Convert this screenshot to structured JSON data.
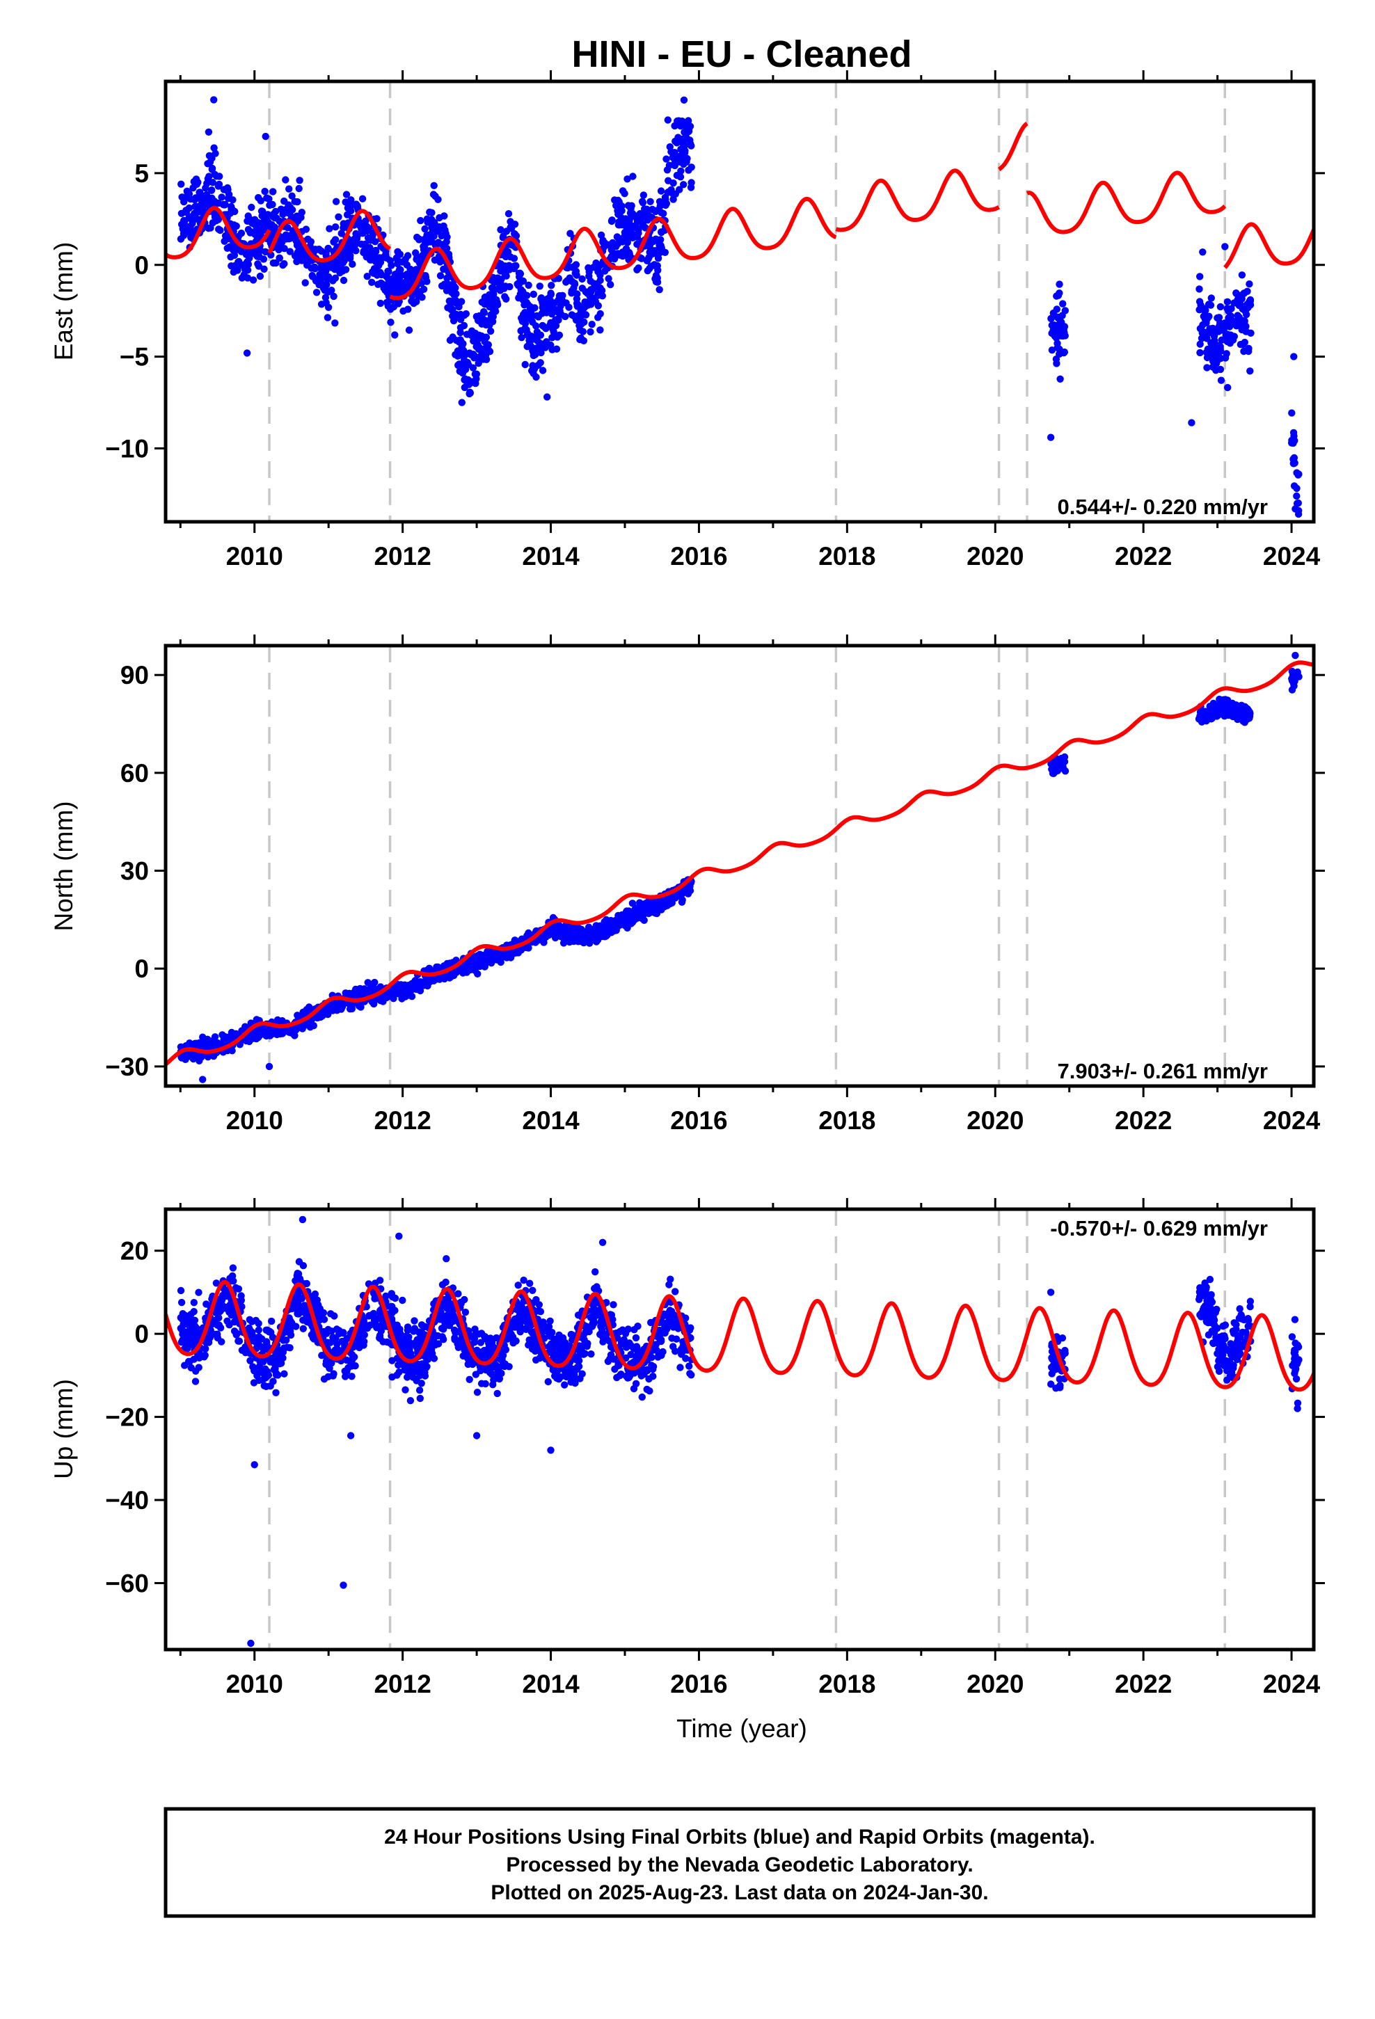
{
  "title": "HINI  - EU - Cleaned",
  "footer": {
    "line1": "24 Hour Positions Using Final Orbits (blue) and Rapid Orbits (magenta).",
    "line2": "Processed by the Nevada Geodetic Laboratory.",
    "line3": "Plotted on 2025-Aug-23. Last data on 2024-Jan-30."
  },
  "colors": {
    "data": "#0000ff",
    "model": "#ff0000",
    "steps": "#c8c8c8",
    "frame": "#000000"
  },
  "chart_data": [
    {
      "type": "scatter",
      "panel": "east",
      "ylabel": "East (mm)",
      "xlabel": "",
      "rate_label": "0.544+/- 0.220 mm/yr",
      "xlim": [
        2008.8,
        2024.3
      ],
      "ylim": [
        -14,
        10
      ],
      "xticks": [
        2010,
        2012,
        2014,
        2016,
        2018,
        2020,
        2022,
        2024
      ],
      "yticks": [
        5,
        0,
        -5,
        -10
      ],
      "grid": false,
      "step_epochs": [
        2010.2,
        2011.83,
        2017.85,
        2020.05,
        2020.43,
        2023.1
      ],
      "series": [
        {
          "role": "observations",
          "segments": [
            [
              2009.0,
              2015.9,
              [
                [
                  2009.0,
                  3.0
                ],
                [
                  2009.15,
                  2.5
                ],
                [
                  2009.3,
                  3.5
                ],
                [
                  2009.45,
                  4.5
                ],
                [
                  2009.6,
                  2.5
                ],
                [
                  2009.75,
                  1.0
                ],
                [
                  2009.9,
                  0.5
                ],
                [
                  2010.05,
                  1.5
                ],
                [
                  2010.2,
                  2.0
                ],
                [
                  2010.35,
                  1.5
                ],
                [
                  2010.5,
                  3.0
                ],
                [
                  2010.65,
                  1.0
                ],
                [
                  2010.8,
                  0.0
                ],
                [
                  2010.95,
                  -1.0
                ],
                [
                  2011.1,
                  0.0
                ],
                [
                  2011.25,
                  1.5
                ],
                [
                  2011.4,
                  2.5
                ],
                [
                  2011.55,
                  1.0
                ],
                [
                  2011.7,
                  0.0
                ],
                [
                  2011.85,
                  -1.5
                ],
                [
                  2012.0,
                  -1.0
                ],
                [
                  2012.15,
                  -1.0
                ],
                [
                  2012.3,
                  0.5
                ],
                [
                  2012.45,
                  2.5
                ],
                [
                  2012.6,
                  -0.5
                ],
                [
                  2012.75,
                  -3.5
                ],
                [
                  2012.9,
                  -5.5
                ],
                [
                  2013.05,
                  -4.0
                ],
                [
                  2013.2,
                  -2.5
                ],
                [
                  2013.35,
                  0.0
                ],
                [
                  2013.5,
                  1.0
                ],
                [
                  2013.65,
                  -2.5
                ],
                [
                  2013.8,
                  -4.5
                ],
                [
                  2013.95,
                  -3.0
                ],
                [
                  2014.1,
                  -3.0
                ],
                [
                  2014.25,
                  -0.5
                ],
                [
                  2014.4,
                  -2.5
                ],
                [
                  2014.55,
                  -1.5
                ],
                [
                  2014.7,
                  -0.5
                ],
                [
                  2014.85,
                  1.5
                ],
                [
                  2015.0,
                  2.5
                ],
                [
                  2015.15,
                  1.5
                ],
                [
                  2015.3,
                  2.0
                ],
                [
                  2015.45,
                  0.5
                ],
                [
                  2015.6,
                  5.0
                ],
                [
                  2015.75,
                  6.5
                ],
                [
                  2015.9,
                  6.0
                ]
              ]
            ],
            [
              2020.75,
              2020.95,
              [
                [
                  2020.75,
                  -3.0
                ],
                [
                  2020.85,
                  -3.5
                ],
                [
                  2020.95,
                  -4.0
                ]
              ]
            ],
            [
              2022.75,
              2023.45,
              [
                [
                  2022.75,
                  -3.0
                ],
                [
                  2022.9,
                  -4.0
                ],
                [
                  2023.05,
                  -4.5
                ],
                [
                  2023.2,
                  -3.0
                ],
                [
                  2023.3,
                  -2.5
                ],
                [
                  2023.45,
                  -3.0
                ]
              ]
            ],
            [
              2024.0,
              2024.1,
              [
                [
                  2024.0,
                  -9.0
                ],
                [
                  2024.05,
                  -11.0
                ],
                [
                  2024.1,
                  -12.0
                ]
              ]
            ]
          ],
          "scatter_mm": 1.5,
          "outliers": [
            [
              2009.45,
              9.0
            ],
            [
              2010.15,
              7.0
            ],
            [
              2009.9,
              -4.8
            ],
            [
              2012.8,
              -7.5
            ],
            [
              2013.95,
              -7.2
            ],
            [
              2020.75,
              -9.4
            ],
            [
              2022.65,
              -8.6
            ],
            [
              2023.1,
              1.0
            ],
            [
              2022.8,
              0.7
            ],
            [
              2024.05,
              -13.3
            ],
            [
              2024.03,
              -5.0
            ]
          ]
        },
        {
          "role": "model",
          "trend_mm_per_yr": 0.544,
          "annual_amp_mm": 1.2,
          "semiannual_amp_mm": 0.2,
          "phase_peak_year": 0.45,
          "offset_pieces": [
            [
              2008.8,
              2010.2,
              1.45
            ],
            [
              2010.2,
              2011.83,
              0.2
            ],
            [
              2011.83,
              2017.85,
              -2.4
            ],
            [
              2017.85,
              2020.05,
              -1.95
            ],
            [
              2020.05,
              2020.43,
              0.1
            ],
            [
              2020.43,
              2023.1,
              -3.7
            ],
            [
              2023.1,
              2024.3,
              -7.05
            ]
          ]
        }
      ]
    },
    {
      "type": "scatter",
      "panel": "north",
      "ylabel": "North (mm)",
      "xlabel": "",
      "rate_label": "7.903+/- 0.261 mm/yr",
      "xlim": [
        2008.8,
        2024.3
      ],
      "ylim": [
        -36,
        99
      ],
      "xticks": [
        2010,
        2012,
        2014,
        2016,
        2018,
        2020,
        2022,
        2024
      ],
      "yticks": [
        90,
        60,
        30,
        0,
        -30
      ],
      "grid": false,
      "step_epochs": [
        2010.2,
        2011.83,
        2017.85,
        2020.05,
        2020.43,
        2023.1
      ],
      "series": [
        {
          "role": "observations",
          "segments": [
            [
              2009.0,
              2015.9,
              [
                [
                  2009.0,
                  -26.0
                ],
                [
                  2009.5,
                  -24.0
                ],
                [
                  2010.0,
                  -19.0
                ],
                [
                  2010.5,
                  -18.0
                ],
                [
                  2011.0,
                  -12.0
                ],
                [
                  2011.5,
                  -8.0
                ],
                [
                  2012.0,
                  -7.0
                ],
                [
                  2012.5,
                  -1.0
                ],
                [
                  2013.0,
                  2.0
                ],
                [
                  2013.5,
                  6.0
                ],
                [
                  2014.0,
                  12.0
                ],
                [
                  2014.5,
                  10.0
                ],
                [
                  2015.0,
                  15.0
                ],
                [
                  2015.5,
                  20.0
                ],
                [
                  2015.9,
                  26.0
                ]
              ]
            ],
            [
              2020.75,
              2020.95,
              [
                [
                  2020.75,
                  62.0
                ],
                [
                  2020.95,
                  63.0
                ]
              ]
            ],
            [
              2022.75,
              2023.45,
              [
                [
                  2022.75,
                  77.0
                ],
                [
                  2023.1,
                  80.0
                ],
                [
                  2023.45,
                  77.0
                ]
              ]
            ],
            [
              2024.0,
              2024.1,
              [
                [
                  2024.0,
                  89.0
                ],
                [
                  2024.1,
                  91.0
                ]
              ]
            ]
          ],
          "scatter_mm": 1.8,
          "outliers": [
            [
              2009.3,
              -34.0
            ],
            [
              2010.2,
              -30.0
            ],
            [
              2009.3,
              -21.0
            ],
            [
              2024.05,
              96.0
            ]
          ]
        },
        {
          "role": "model",
          "trend_mm_per_yr": 7.903,
          "annual_amp_mm": 1.8,
          "semiannual_amp_mm": 0.3,
          "phase_peak_year": 0.05,
          "offset_pieces": [
            [
              2008.8,
              2024.3,
              -27.5
            ]
          ]
        }
      ]
    },
    {
      "type": "scatter",
      "panel": "up",
      "ylabel": "Up (mm)",
      "xlabel": "Time (year)",
      "rate_label": "-0.570+/- 0.629 mm/yr",
      "xlim": [
        2008.8,
        2024.3
      ],
      "ylim": [
        -76,
        30
      ],
      "xticks": [
        2010,
        2012,
        2014,
        2016,
        2018,
        2020,
        2022,
        2024
      ],
      "yticks": [
        20,
        0,
        -20,
        -40,
        -60
      ],
      "grid": false,
      "step_epochs": [
        2010.2,
        2011.83,
        2017.85,
        2020.05,
        2020.43,
        2023.1
      ],
      "series": [
        {
          "role": "observations",
          "segments": [
            [
              2009.0,
              2015.9,
              [
                [
                  2009.0,
                  1.0
                ],
                [
                  2009.3,
                  -2.0
                ],
                [
                  2009.6,
                  10.0
                ],
                [
                  2010.0,
                  -4.0
                ],
                [
                  2010.3,
                  -6.0
                ],
                [
                  2010.6,
                  10.0
                ],
                [
                  2011.0,
                  -3.0
                ],
                [
                  2011.3,
                  -5.0
                ],
                [
                  2011.6,
                  9.0
                ],
                [
                  2012.0,
                  -4.0
                ],
                [
                  2012.3,
                  -5.0
                ],
                [
                  2012.6,
                  8.0
                ],
                [
                  2013.0,
                  -5.0
                ],
                [
                  2013.3,
                  -7.0
                ],
                [
                  2013.6,
                  7.0
                ],
                [
                  2014.0,
                  -5.0
                ],
                [
                  2014.3,
                  -6.0
                ],
                [
                  2014.6,
                  6.0
                ],
                [
                  2015.0,
                  -6.0
                ],
                [
                  2015.3,
                  -8.0
                ],
                [
                  2015.6,
                  5.0
                ],
                [
                  2015.9,
                  -4.0
                ]
              ]
            ],
            [
              2020.75,
              2020.95,
              [
                [
                  2020.75,
                  -5.0
                ],
                [
                  2020.85,
                  -7.0
                ],
                [
                  2020.95,
                  -9.0
                ]
              ]
            ],
            [
              2022.75,
              2023.45,
              [
                [
                  2022.75,
                  8.0
                ],
                [
                  2022.9,
                  5.0
                ],
                [
                  2023.05,
                  -4.0
                ],
                [
                  2023.2,
                  -6.0
                ],
                [
                  2023.35,
                  0.0
                ],
                [
                  2023.45,
                  2.0
                ]
              ]
            ],
            [
              2024.0,
              2024.1,
              [
                [
                  2024.0,
                  -3.0
                ],
                [
                  2024.1,
                  -9.0
                ]
              ]
            ]
          ],
          "scatter_mm": 5.0,
          "outliers": [
            [
              2009.95,
              -74.5
            ],
            [
              2011.2,
              -60.5
            ],
            [
              2010.0,
              -31.5
            ],
            [
              2014.0,
              -28.0
            ],
            [
              2010.65,
              27.5
            ],
            [
              2011.95,
              23.5
            ],
            [
              2014.7,
              22.0
            ],
            [
              2011.3,
              -24.5
            ],
            [
              2013.0,
              -24.5
            ],
            [
              2020.75,
              10.0
            ],
            [
              2024.08,
              -18.0
            ]
          ]
        },
        {
          "role": "model",
          "trend_mm_per_yr": -0.57,
          "annual_amp_mm": 8.8,
          "semiannual_amp_mm": 1.2,
          "phase_peak_year": 0.6,
          "offset_pieces": [
            [
              2008.8,
              2024.3,
              2.8
            ]
          ]
        }
      ]
    }
  ]
}
